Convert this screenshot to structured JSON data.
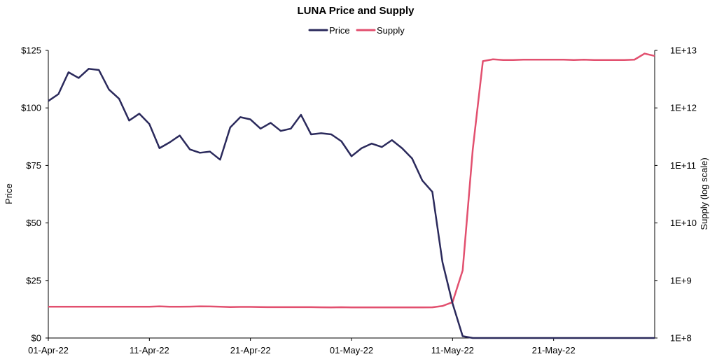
{
  "chart_data": {
    "type": "line",
    "title": "LUNA Price and Supply",
    "ylabel": "Price",
    "y2label": "Supply (log scale)",
    "xlabel": "",
    "x_tick_labels": [
      "01-Apr-22",
      "11-Apr-22",
      "21-Apr-22",
      "01-May-22",
      "11-May-22",
      "21-May-22"
    ],
    "y_tick_labels": [
      "$0",
      "$25",
      "$50",
      "$75",
      "$100",
      "$125"
    ],
    "y2_tick_labels": [
      "1E+8",
      "1E+9",
      "1E+10",
      "1E+11",
      "1E+12",
      "1E+13"
    ],
    "ylim": [
      0,
      125
    ],
    "y2lim": [
      100000000,
      10000000000000
    ],
    "y2_scale": "log",
    "xlim": [
      "2022-04-01",
      "2022-05-31"
    ],
    "legend_position": "top-center",
    "grid": false,
    "x": [
      "2022-04-01",
      "2022-04-02",
      "2022-04-03",
      "2022-04-04",
      "2022-04-05",
      "2022-04-06",
      "2022-04-07",
      "2022-04-08",
      "2022-04-09",
      "2022-04-10",
      "2022-04-11",
      "2022-04-12",
      "2022-04-13",
      "2022-04-14",
      "2022-04-15",
      "2022-04-16",
      "2022-04-17",
      "2022-04-18",
      "2022-04-19",
      "2022-04-20",
      "2022-04-21",
      "2022-04-22",
      "2022-04-23",
      "2022-04-24",
      "2022-04-25",
      "2022-04-26",
      "2022-04-27",
      "2022-04-28",
      "2022-04-29",
      "2022-04-30",
      "2022-05-01",
      "2022-05-02",
      "2022-05-03",
      "2022-05-04",
      "2022-05-05",
      "2022-05-06",
      "2022-05-07",
      "2022-05-08",
      "2022-05-09",
      "2022-05-10",
      "2022-05-11",
      "2022-05-12",
      "2022-05-13",
      "2022-05-14",
      "2022-05-15",
      "2022-05-16",
      "2022-05-17",
      "2022-05-18",
      "2022-05-19",
      "2022-05-20",
      "2022-05-21",
      "2022-05-22",
      "2022-05-23",
      "2022-05-24",
      "2022-05-25",
      "2022-05-26",
      "2022-05-27",
      "2022-05-28",
      "2022-05-29",
      "2022-05-30",
      "2022-05-31"
    ],
    "series": [
      {
        "name": "Price",
        "axis": "left",
        "color": "#2b2a5c",
        "values": [
          103,
          106,
          115.5,
          113,
          117,
          116.5,
          108,
          104,
          94.5,
          97.5,
          93,
          82.5,
          85,
          88,
          82,
          80.5,
          81,
          77.5,
          91.5,
          96,
          95,
          91,
          93.5,
          90,
          91,
          97,
          88.5,
          89,
          88.5,
          85.5,
          79,
          82.5,
          84.5,
          83,
          86,
          82.5,
          78,
          68.5,
          63.5,
          33,
          15,
          0.8,
          0.001,
          0.0002,
          0.0002,
          0.0002,
          0.0002,
          0.0002,
          0.0002,
          0.0002,
          0.0002,
          0.0002,
          0.0002,
          0.0002,
          0.0002,
          0.0002,
          0.0002,
          0.0002,
          0.0002,
          0.0002,
          0.0002
        ]
      },
      {
        "name": "Supply",
        "axis": "right",
        "color": "#e2506f",
        "values": [
          350000000,
          350000000,
          350000000,
          350000000,
          350000000,
          350000000,
          350000000,
          350000000,
          350000000,
          350000000,
          350000000,
          355000000,
          350000000,
          350000000,
          352000000,
          355000000,
          354000000,
          350000000,
          345000000,
          348000000,
          348000000,
          346000000,
          344000000,
          344000000,
          344000000,
          344000000,
          344000000,
          342000000,
          340000000,
          343000000,
          340000000,
          340000000,
          340000000,
          340000000,
          340000000,
          340000000,
          340000000,
          340000000,
          342000000,
          360000000,
          420000000,
          1500000000,
          190000000000,
          6500000000000,
          7000000000000,
          6800000000000,
          6800000000000,
          6900000000000,
          6900000000000,
          6900000000000,
          6900000000000,
          6900000000000,
          6800000000000,
          6900000000000,
          6800000000000,
          6800000000000,
          6800000000000,
          6800000000000,
          6900000000000,
          8800000000000,
          8000000000000
        ]
      }
    ]
  }
}
